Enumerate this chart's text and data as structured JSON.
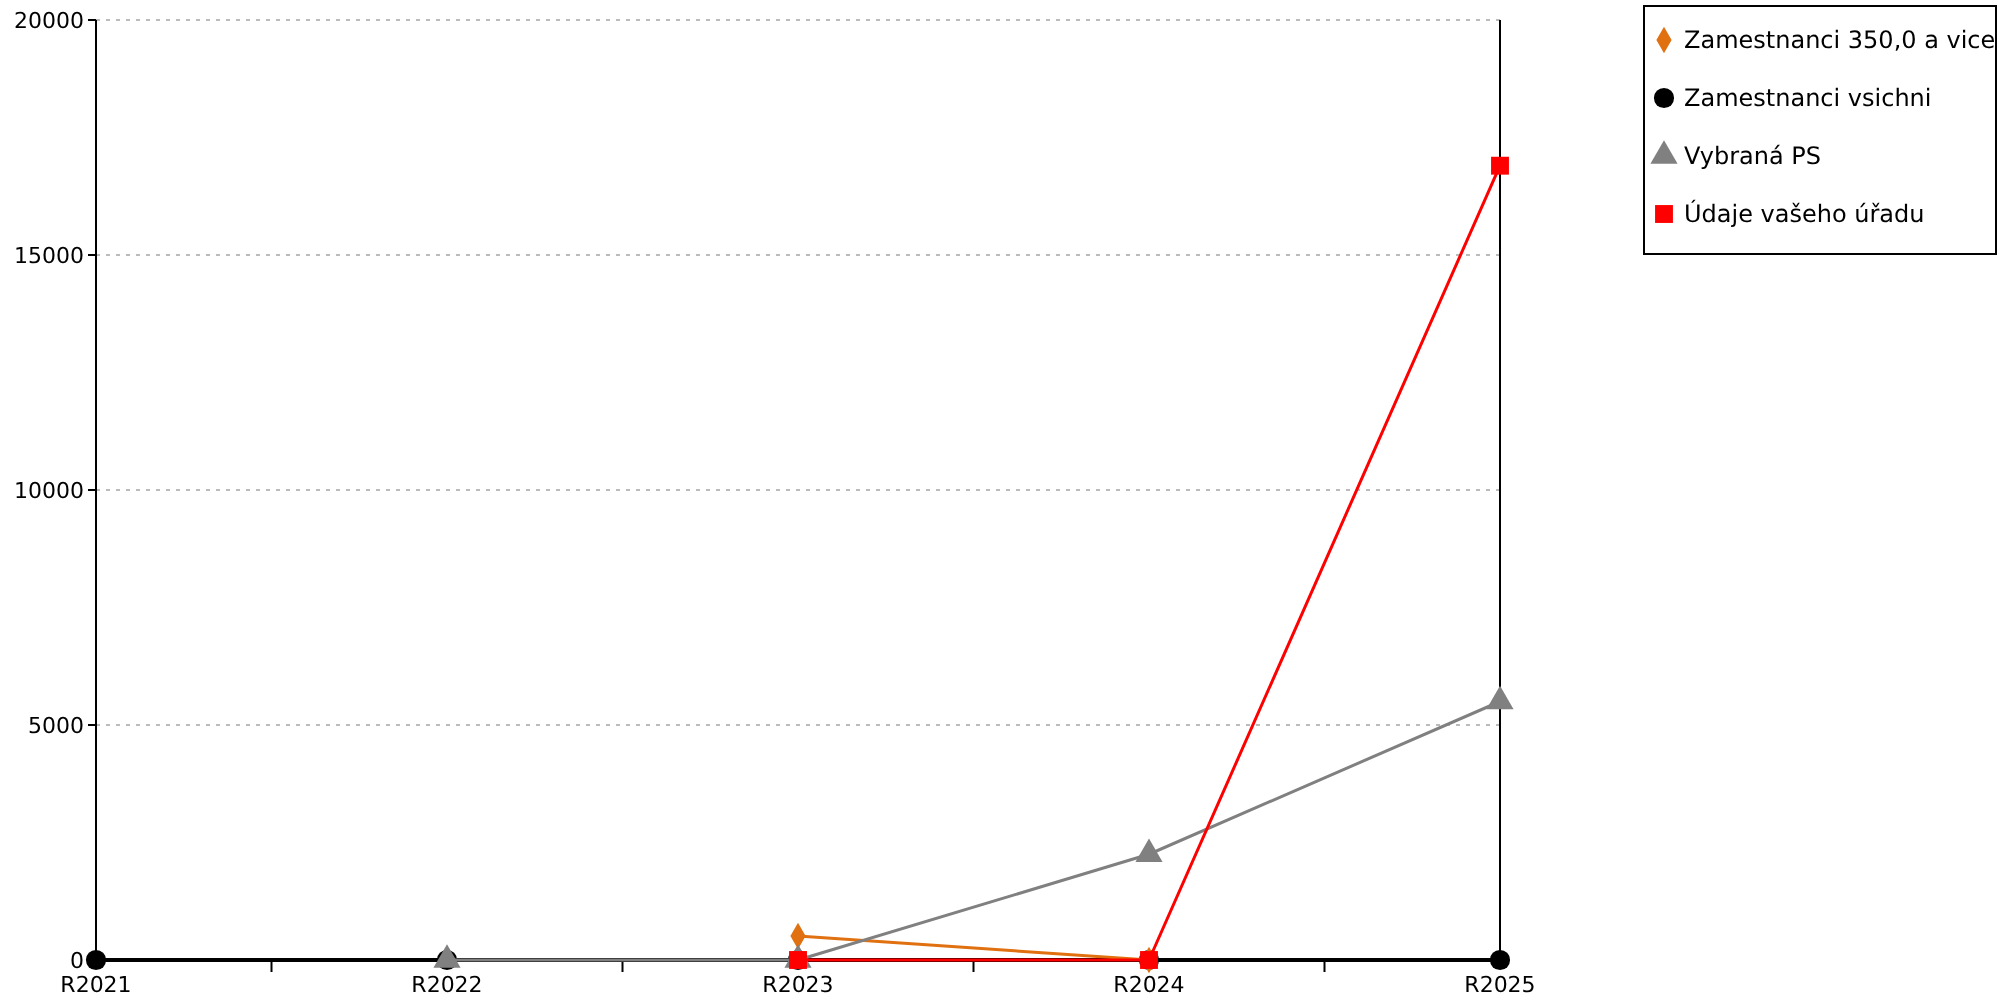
{
  "chart_data": {
    "type": "line",
    "categories": [
      "R2021",
      "R2022",
      "R2023",
      "R2024",
      "R2025"
    ],
    "series": [
      {
        "name": "Zamestnanci 350,0 a vice",
        "color": "#e07010",
        "marker": "diamond",
        "values": [
          null,
          null,
          510,
          0,
          null
        ]
      },
      {
        "name": "Zamestnanci vsichni",
        "color": "#000000",
        "marker": "circle",
        "values": [
          0,
          0,
          0,
          0,
          0
        ]
      },
      {
        "name": "Vybraná PS",
        "color": "#808080",
        "marker": "triangle",
        "values": [
          null,
          0,
          0,
          2250,
          5500
        ]
      },
      {
        "name": "Údaje vašeho úřadu",
        "color": "#ff0000",
        "marker": "square",
        "values": [
          null,
          null,
          0,
          0,
          16900
        ]
      }
    ],
    "ylim": [
      0,
      20000
    ],
    "yticks": [
      0,
      5000,
      10000,
      15000,
      20000
    ],
    "grid": "y",
    "legend": "top right"
  }
}
